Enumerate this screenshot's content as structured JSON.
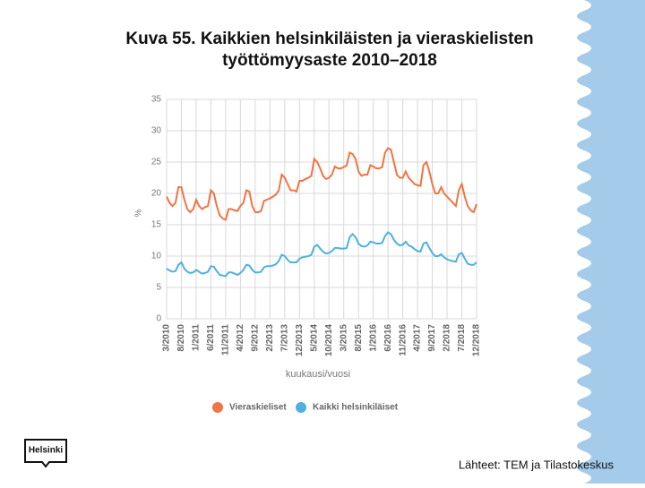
{
  "chart_data": {
    "type": "line",
    "title": [
      "Kuva 55. Kaikkien helsinkiläisten ja vieraskielisten",
      "työttömyysaste 2010–2018"
    ],
    "y_label": "%",
    "x_label": "kuukausi/vuosi",
    "categories": [
      "3/2010",
      null,
      null,
      null,
      null,
      "8/2010",
      null,
      null,
      null,
      null,
      "1/2011",
      null,
      null,
      null,
      null,
      "6/2011",
      null,
      null,
      null,
      null,
      "11/2011",
      null,
      null,
      null,
      null,
      "4/2012",
      null,
      null,
      null,
      null,
      "9/2012",
      null,
      null,
      null,
      null,
      "2/2013",
      null,
      null,
      null,
      null,
      "7/2013",
      null,
      null,
      null,
      null,
      "12/2013",
      null,
      null,
      null,
      null,
      "5/2014",
      null,
      null,
      null,
      null,
      "10/2014",
      null,
      null,
      null,
      null,
      "3/2015",
      null,
      null,
      null,
      null,
      "8/2015",
      null,
      null,
      null,
      null,
      "1/2016",
      null,
      null,
      null,
      null,
      "6/2016",
      null,
      null,
      null,
      null,
      "11/2016",
      null,
      null,
      null,
      null,
      "4/2017",
      null,
      null,
      null,
      null,
      "9/2017",
      null,
      null,
      null,
      null,
      "2/2018",
      null,
      null,
      null,
      null,
      "7/2018",
      null,
      null,
      null,
      null,
      "12/2018"
    ],
    "series": [
      {
        "name": "Vieraskieliset",
        "color": "#f07444",
        "values": [
          19.5,
          18.5,
          18,
          18.5,
          21,
          21,
          19,
          17.5,
          17,
          17.5,
          19,
          18,
          17.5,
          17.8,
          18,
          20.5,
          20,
          18,
          16.5,
          16,
          15.8,
          17.5,
          17.5,
          17.3,
          17.2,
          18,
          18.5,
          20.5,
          20.3,
          18,
          17,
          17,
          17.2,
          18.8,
          19,
          19.2,
          19.5,
          19.8,
          20.5,
          23,
          22.5,
          21.5,
          20.5,
          20.5,
          20.3,
          22,
          22,
          22.3,
          22.5,
          22.8,
          25.5,
          25,
          24,
          22.8,
          22.3,
          22.5,
          23,
          24.3,
          24,
          24,
          24.2,
          24.5,
          26.5,
          26.3,
          25.5,
          23.5,
          22.8,
          23,
          23,
          24.5,
          24.3,
          24,
          24,
          24.2,
          26.5,
          27.2,
          27,
          25,
          23,
          22.5,
          22.5,
          23.5,
          22.5,
          22,
          21.5,
          21.3,
          21.2,
          24.5,
          25,
          23.5,
          21.5,
          20,
          20,
          21,
          20,
          19.5,
          19,
          18.5,
          18,
          20.5,
          21.5,
          19.5,
          18,
          17.3,
          17,
          18.3
        ]
      },
      {
        "name": "Kaikki helsinkiläiset",
        "color": "#4fb0e0",
        "values": [
          8,
          7.7,
          7.5,
          7.6,
          8.6,
          9,
          8,
          7.5,
          7.3,
          7.4,
          7.8,
          7.5,
          7.2,
          7.3,
          7.5,
          8.4,
          8.3,
          7.6,
          7,
          6.9,
          6.8,
          7.4,
          7.4,
          7.2,
          7,
          7.3,
          7.8,
          8.6,
          8.5,
          7.8,
          7.4,
          7.4,
          7.5,
          8.2,
          8.4,
          8.4,
          8.5,
          8.7,
          9.2,
          10.2,
          10,
          9.4,
          9,
          9,
          9,
          9.6,
          9.8,
          9.9,
          10,
          10.2,
          11.5,
          11.8,
          11.2,
          10.7,
          10.4,
          10.5,
          10.8,
          11.3,
          11.3,
          11.2,
          11.2,
          11.3,
          13,
          13.5,
          13,
          12,
          11.6,
          11.5,
          11.7,
          12.3,
          12.2,
          12,
          12,
          12.1,
          13.2,
          13.8,
          13.5,
          12.6,
          12,
          11.7,
          11.8,
          12.3,
          11.7,
          11.5,
          11.1,
          10.8,
          10.7,
          12,
          12.2,
          11.3,
          10.5,
          10,
          10,
          10.3,
          9.8,
          9.5,
          9.3,
          9.2,
          9.1,
          10.3,
          10.5,
          9.6,
          8.8,
          8.6,
          8.6,
          9
        ]
      }
    ],
    "ylim": [
      0,
      35
    ],
    "yticks": [
      0,
      5,
      10,
      15,
      20,
      25,
      30,
      35
    ],
    "grid": true,
    "legend": "bottom"
  },
  "source": "Lähteet: TEM ja Tilastokeskus",
  "logo": "Helsinki"
}
